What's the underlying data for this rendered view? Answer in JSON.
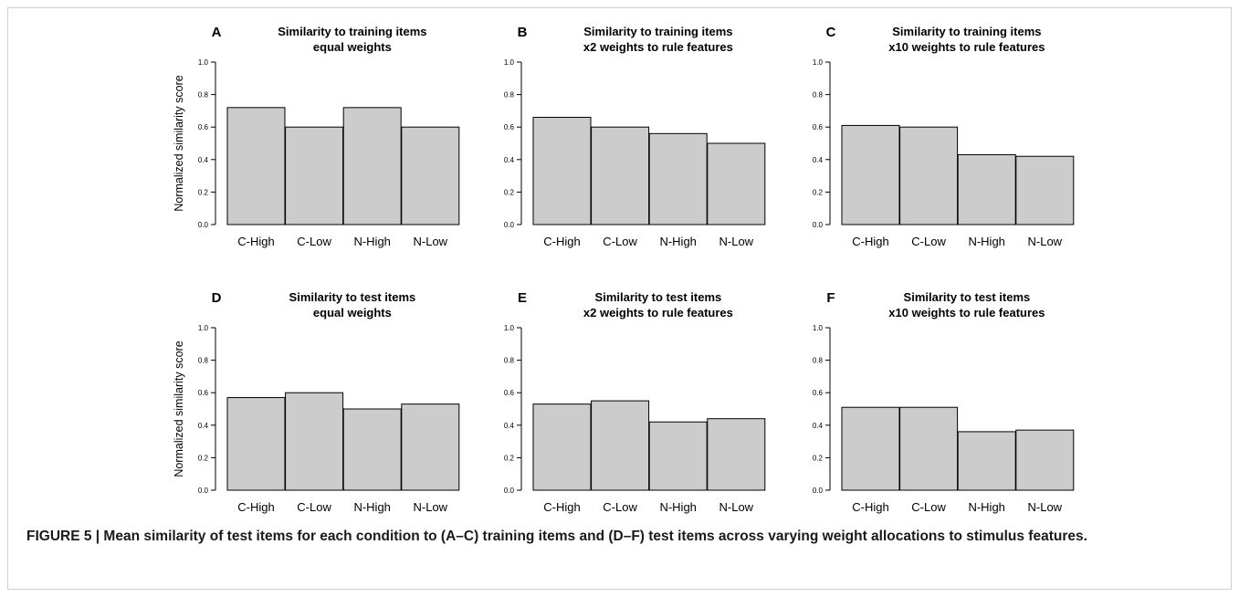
{
  "figure": {
    "caption": "FIGURE 5 | Mean similarity of test items for each condition to (A–C) training items and (D–F) test items across varying weight allocations to stimulus features.",
    "ylabel": "Normalized similarity score",
    "bar_fill": "#cccccc",
    "bar_stroke": "#000000"
  },
  "chart_data": [
    {
      "type": "bar",
      "panel": "A",
      "title": "Similarity to training items",
      "subtitle": "equal weights",
      "categories": [
        "C-High",
        "C-Low",
        "N-High",
        "N-Low"
      ],
      "values": [
        0.72,
        0.6,
        0.72,
        0.6
      ],
      "ylim": [
        0,
        1
      ],
      "yticks": [
        "0.0",
        "0.2",
        "0.4",
        "0.6",
        "0.8",
        "1.0"
      ],
      "ylabel": "Normalized similarity score"
    },
    {
      "type": "bar",
      "panel": "B",
      "title": "Similarity to training items",
      "subtitle": "x2 weights to rule features",
      "categories": [
        "C-High",
        "C-Low",
        "N-High",
        "N-Low"
      ],
      "values": [
        0.66,
        0.6,
        0.56,
        0.5
      ],
      "ylim": [
        0,
        1
      ],
      "yticks": [
        "0.0",
        "0.2",
        "0.4",
        "0.6",
        "0.8",
        "1.0"
      ],
      "ylabel": ""
    },
    {
      "type": "bar",
      "panel": "C",
      "title": "Similarity to training items",
      "subtitle": "x10 weights to rule features",
      "categories": [
        "C-High",
        "C-Low",
        "N-High",
        "N-Low"
      ],
      "values": [
        0.61,
        0.6,
        0.43,
        0.42
      ],
      "ylim": [
        0,
        1
      ],
      "yticks": [
        "0.0",
        "0.2",
        "0.4",
        "0.6",
        "0.8",
        "1.0"
      ],
      "ylabel": ""
    },
    {
      "type": "bar",
      "panel": "D",
      "title": "Similarity to test items",
      "subtitle": "equal weights",
      "categories": [
        "C-High",
        "C-Low",
        "N-High",
        "N-Low"
      ],
      "values": [
        0.57,
        0.6,
        0.5,
        0.53
      ],
      "ylim": [
        0,
        1
      ],
      "yticks": [
        "0.0",
        "0.2",
        "0.4",
        "0.6",
        "0.8",
        "1.0"
      ],
      "ylabel": "Normalized similarity score"
    },
    {
      "type": "bar",
      "panel": "E",
      "title": "Similarity to test items",
      "subtitle": "x2 weights to rule features",
      "categories": [
        "C-High",
        "C-Low",
        "N-High",
        "N-Low"
      ],
      "values": [
        0.53,
        0.55,
        0.42,
        0.44
      ],
      "ylim": [
        0,
        1
      ],
      "yticks": [
        "0.0",
        "0.2",
        "0.4",
        "0.6",
        "0.8",
        "1.0"
      ],
      "ylabel": ""
    },
    {
      "type": "bar",
      "panel": "F",
      "title": "Similarity to test items",
      "subtitle": "x10 weights to rule features",
      "categories": [
        "C-High",
        "C-Low",
        "N-High",
        "N-Low"
      ],
      "values": [
        0.51,
        0.51,
        0.36,
        0.37
      ],
      "ylim": [
        0,
        1
      ],
      "yticks": [
        "0.0",
        "0.2",
        "0.4",
        "0.6",
        "0.8",
        "1.0"
      ],
      "ylabel": ""
    }
  ]
}
